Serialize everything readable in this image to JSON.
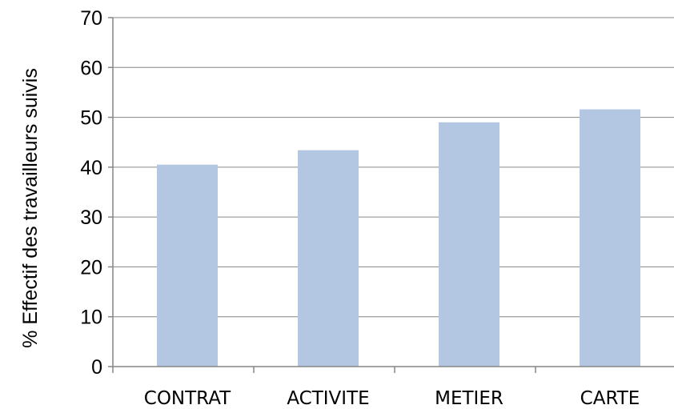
{
  "chart_data": {
    "type": "bar",
    "categories": [
      "CONTRAT",
      "ACTIVITE",
      "METIER",
      "CARTE"
    ],
    "series": [
      {
        "values": [
          40.5,
          43.4,
          49.0,
          51.6
        ]
      }
    ],
    "title": "",
    "xlabel": "",
    "ylabel": "% Effectif des travailleurs suivis",
    "ylim": [
      0,
      70
    ],
    "yticks": [
      0,
      10,
      20,
      30,
      40,
      50,
      60,
      70
    ],
    "grid": true,
    "legend": "none",
    "bar_color": "#b3c6e2",
    "grid_color": "#868686"
  }
}
